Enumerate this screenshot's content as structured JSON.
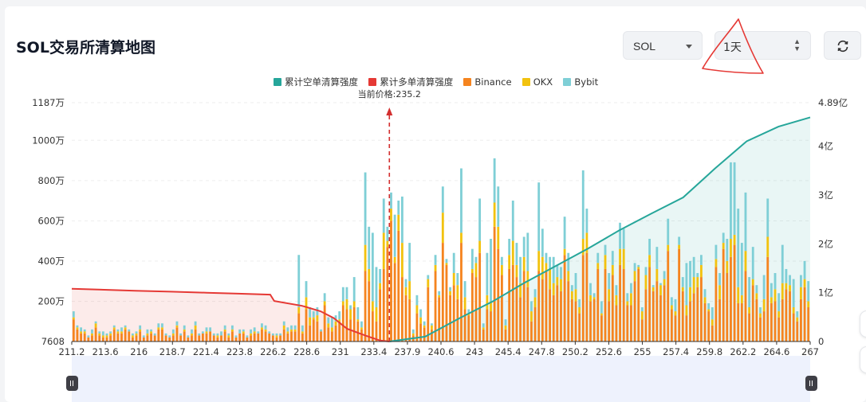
{
  "page": {
    "title": "SOL交易所清算地图"
  },
  "controls": {
    "symbol": "SOL",
    "period": "1天",
    "refresh_icon": "refresh-icon",
    "caret_icon": "chevron-down-icon"
  },
  "colors": {
    "short_cum": "#26a69a",
    "long_cum": "#e53935",
    "binance": "#f5841f",
    "okx": "#f2c20f",
    "bybit": "#7fcfd6",
    "price_line": "#d32f2f",
    "annotation": "#e53935",
    "slider": "#eef2fd"
  },
  "chart_data": {
    "type": "bar",
    "title": "",
    "legend": [
      "累计空单清算强度",
      "累计多单清算强度",
      "Binance",
      "OKX",
      "Bybit"
    ],
    "legend_position": "top",
    "current_price_label": "当前价格:235.2",
    "current_price": 235.2,
    "x_ticks": [
      "211.2",
      "213.6",
      "216",
      "218.7",
      "221.4",
      "223.8",
      "226.2",
      "228.6",
      "231",
      "233.4",
      "237.9",
      "240.6",
      "243",
      "245.4",
      "247.8",
      "250.2",
      "252.6",
      "255",
      "257.4",
      "259.8",
      "262.2",
      "264.6",
      "267"
    ],
    "y_left_ticks": [
      "7608",
      "200万",
      "400万",
      "600万",
      "800万",
      "1000万",
      "1187万"
    ],
    "y_left_range": [
      7608,
      11870000
    ],
    "y_right_ticks": [
      "0",
      "1亿",
      "2亿",
      "3亿",
      "4亿",
      "4.89亿"
    ],
    "y_right_range": [
      0,
      489000000
    ],
    "x_range": [
      211.2,
      267
    ],
    "bins": 200,
    "series": [
      {
        "name": "Binance",
        "values": [
          11,
          6,
          4,
          4,
          2,
          3,
          7,
          3,
          2,
          2,
          3,
          6,
          4,
          4,
          6,
          5,
          2,
          3,
          5,
          2,
          3,
          4,
          3,
          6,
          6,
          3,
          2,
          3,
          7,
          3,
          5,
          2,
          3,
          6,
          3,
          4,
          4,
          5,
          3,
          2,
          3,
          5,
          2,
          5,
          2,
          4,
          4,
          2,
          3,
          4,
          4,
          6,
          5,
          4,
          3,
          2,
          3,
          6,
          4,
          5,
          5,
          14,
          4,
          16,
          8,
          11,
          10,
          5,
          18,
          7,
          5,
          8,
          10,
          18,
          16,
          11,
          17,
          10,
          6,
          35,
          30,
          15,
          10,
          26,
          36,
          47,
          60,
          39,
          55,
          32,
          23,
          21,
          3,
          14,
          9,
          7,
          27,
          6,
          35,
          22,
          49,
          38,
          23,
          28,
          21,
          49,
          16,
          13,
          34,
          32,
          44,
          6,
          16,
          15,
          57,
          46,
          33,
          6,
          36,
          38,
          32,
          22,
          35,
          27,
          10,
          17,
          35,
          31,
          35,
          26,
          23,
          28,
          25,
          43,
          30,
          21,
          20,
          14,
          43,
          44,
          20,
          21,
          36,
          13,
          36,
          20,
          33,
          18,
          38,
          36,
          18,
          18,
          30,
          36,
          11,
          26,
          37,
          25,
          30,
          23,
          28,
          45,
          16,
          13,
          46,
          25,
          13,
          20,
          24,
          27,
          32,
          19,
          15,
          8,
          37,
          21,
          46,
          34,
          42,
          48,
          19,
          19,
          35,
          14,
          28,
          21,
          12,
          15,
          42,
          19,
          20,
          12,
          21,
          26,
          25,
          14,
          10,
          21,
          27,
          17
        ]
      },
      {
        "name": "OKX",
        "values": [
          1,
          1,
          1,
          1,
          0,
          1,
          2,
          1,
          1,
          1,
          1,
          1,
          1,
          1,
          1,
          0,
          1,
          1,
          1,
          0,
          1,
          1,
          0,
          1,
          1,
          0,
          0,
          1,
          1,
          0,
          1,
          0,
          1,
          2,
          0,
          0,
          1,
          0,
          0,
          1,
          0,
          1,
          1,
          1,
          0,
          0,
          1,
          0,
          1,
          1,
          0,
          1,
          1,
          0,
          0,
          1,
          0,
          2,
          1,
          1,
          1,
          3,
          1,
          6,
          4,
          1,
          3,
          0,
          2,
          2,
          2,
          2,
          1,
          2,
          5,
          5,
          3,
          1,
          1,
          13,
          6,
          5,
          7,
          3,
          18,
          3,
          6,
          3,
          8,
          17,
          4,
          9,
          1,
          4,
          3,
          1,
          4,
          2,
          3,
          1,
          15,
          1,
          2,
          6,
          7,
          5,
          6,
          1,
          2,
          7,
          6,
          1,
          7,
          5,
          12,
          11,
          5,
          2,
          7,
          12,
          6,
          7,
          7,
          8,
          5,
          5,
          10,
          11,
          4,
          10,
          6,
          4,
          6,
          3,
          5,
          4,
          6,
          3,
          8,
          10,
          3,
          1,
          3,
          1,
          7,
          6,
          5,
          5,
          8,
          10,
          2,
          6,
          5,
          1,
          4,
          7,
          6,
          2,
          6,
          5,
          3,
          3,
          2,
          2,
          2,
          2,
          5,
          7,
          8,
          5,
          6,
          3,
          1,
          3,
          4,
          7,
          3,
          6,
          9,
          5,
          8,
          4,
          10,
          3,
          3,
          3,
          2,
          6,
          10,
          3,
          6,
          3,
          8,
          3,
          3,
          3,
          2,
          6,
          4,
          3
        ]
      },
      {
        "name": "Bybit",
        "values": [
          3,
          1,
          2,
          1,
          1,
          2,
          1,
          1,
          2,
          1,
          1,
          1,
          1,
          2,
          1,
          1,
          1,
          1,
          2,
          1,
          2,
          1,
          1,
          2,
          2,
          1,
          1,
          2,
          2,
          1,
          2,
          1,
          2,
          2,
          1,
          1,
          2,
          2,
          1,
          1,
          2,
          2,
          1,
          2,
          1,
          2,
          1,
          1,
          2,
          2,
          1,
          2,
          2,
          1,
          1,
          1,
          1,
          2,
          2,
          2,
          2,
          26,
          3,
          8,
          5,
          3,
          4,
          1,
          4,
          3,
          5,
          3,
          4,
          7,
          6,
          2,
          12,
          6,
          3,
          36,
          21,
          34,
          20,
          7,
          17,
          7,
          8,
          21,
          7,
          23,
          4,
          19,
          2,
          5,
          4,
          2,
          2,
          1,
          5,
          2,
          13,
          2,
          2,
          10,
          6,
          32,
          8,
          2,
          10,
          3,
          21,
          2,
          21,
          31,
          22,
          20,
          4,
          3,
          8,
          20,
          11,
          13,
          10,
          19,
          5,
          4,
          34,
          14,
          5,
          6,
          13,
          6,
          6,
          16,
          9,
          3,
          8,
          4,
          34,
          12,
          6,
          2,
          5,
          6,
          5,
          8,
          7,
          5,
          13,
          10,
          4,
          5,
          4,
          1,
          2,
          4,
          8,
          1,
          11,
          1,
          4,
          13,
          4,
          6,
          4,
          5,
          21,
          13,
          10,
          2,
          5,
          4,
          3,
          6,
          7,
          6,
          5,
          11,
          38,
          36,
          39,
          26,
          29,
          15,
          16,
          4,
          3,
          12,
          19,
          7,
          8,
          9,
          19,
          7,
          5,
          14,
          3,
          6,
          9,
          10
        ]
      },
      {
        "name": "累计多单清算强度",
        "type": "area",
        "x": [
          211.2,
          216,
          218.7,
          221.4,
          223.8,
          226.2,
          226.5,
          228.6,
          230,
          231,
          232,
          233.4,
          234.5,
          235.2
        ],
        "values": [
          1.08,
          1.04,
          1.02,
          1.0,
          0.98,
          0.96,
          0.83,
          0.73,
          0.62,
          0.48,
          0.26,
          0.12,
          0.02,
          0.0
        ],
        "unit": "亿"
      },
      {
        "name": "累计空单清算强度",
        "type": "area",
        "x": [
          235.2,
          237.9,
          240.6,
          243,
          245.4,
          247.8,
          250.2,
          252.6,
          255,
          257.4,
          259.8,
          262.2,
          264.6,
          267
        ],
        "values": [
          0.0,
          0.1,
          0.49,
          0.82,
          1.2,
          1.55,
          1.9,
          2.28,
          2.62,
          2.95,
          3.54,
          4.1,
          4.4,
          4.59
        ],
        "unit": "亿"
      }
    ],
    "bar_value_unit": "10万"
  }
}
